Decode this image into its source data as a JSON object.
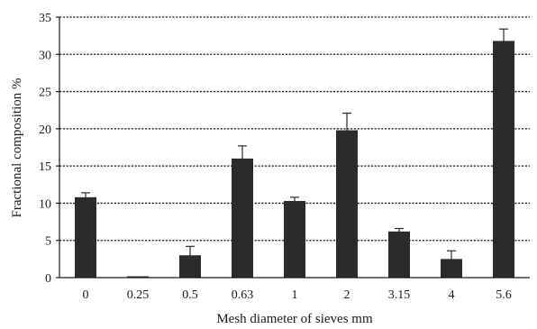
{
  "chart_data": {
    "type": "bar",
    "title": "",
    "xlabel": "Mesh diameter of sieves mm",
    "ylabel": "Fractional composition %",
    "categories": [
      "0",
      "0.25",
      "0.5",
      "0.63",
      "1",
      "2",
      "3.15",
      "4",
      "5.6"
    ],
    "values": [
      10.8,
      0,
      3.0,
      16.0,
      10.3,
      19.8,
      6.2,
      2.5,
      31.8
    ],
    "error": [
      0.6,
      0,
      1.2,
      1.7,
      0.5,
      2.3,
      0.4,
      1.1,
      1.6
    ],
    "ylim": [
      0,
      35
    ],
    "yticks": [
      0,
      5,
      10,
      15,
      20,
      25,
      30,
      35
    ],
    "grid": true,
    "bar_color": "#2b2b2b"
  }
}
